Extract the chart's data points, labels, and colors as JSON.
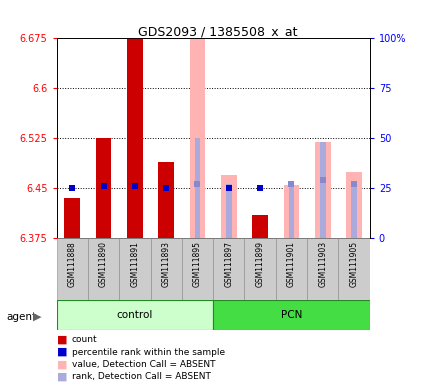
{
  "title": "GDS2093 / 1385508_x_at",
  "samples": [
    "GSM111888",
    "GSM111890",
    "GSM111891",
    "GSM111893",
    "GSM111895",
    "GSM111897",
    "GSM111899",
    "GSM111901",
    "GSM111903",
    "GSM111905"
  ],
  "ylim_left": [
    6.375,
    6.675
  ],
  "ylim_right": [
    0,
    100
  ],
  "yticks_left": [
    6.375,
    6.45,
    6.525,
    6.6,
    6.675
  ],
  "yticks_right": [
    0,
    25,
    50,
    75,
    100
  ],
  "ytick_labels_left": [
    "6.375",
    "6.45",
    "6.525",
    "6.6",
    "6.675"
  ],
  "ytick_labels_right": [
    "0",
    "25",
    "50",
    "75",
    "100%"
  ],
  "hlines": [
    6.45,
    6.525,
    6.6
  ],
  "bar_color_present": "#cc0000",
  "bar_color_absent_value": "#ffb3b3",
  "bar_color_absent_rank": "#aaaadd",
  "dot_color_present": "#0000cc",
  "dot_color_absent": "#8888cc",
  "baseline": 6.375,
  "red_values": [
    6.435,
    6.525,
    6.675,
    6.49,
    null,
    null,
    6.41,
    null,
    null,
    null
  ],
  "blue_dot_pct": [
    25,
    26,
    26,
    25,
    null,
    25,
    25,
    null,
    null,
    null
  ],
  "pink_values": [
    null,
    null,
    null,
    null,
    6.675,
    6.47,
    null,
    6.455,
    6.52,
    6.475
  ],
  "pink_rank_pcts": [
    null,
    null,
    null,
    null,
    50,
    27,
    null,
    27,
    48,
    27
  ],
  "blue_dot_absent_pct": [
    null,
    null,
    null,
    null,
    27,
    null,
    null,
    27,
    29,
    27
  ],
  "bg_color_plot": "#ffffff",
  "bg_color_xticklabels": "#cccccc",
  "bg_color_group_control": "#ccffcc",
  "bg_color_group_pcn": "#44dd44",
  "legend_items": [
    {
      "color": "#cc0000",
      "label": "count"
    },
    {
      "color": "#0000cc",
      "label": "percentile rank within the sample"
    },
    {
      "color": "#ffb3b3",
      "label": "value, Detection Call = ABSENT"
    },
    {
      "color": "#aaaadd",
      "label": "rank, Detection Call = ABSENT"
    }
  ]
}
